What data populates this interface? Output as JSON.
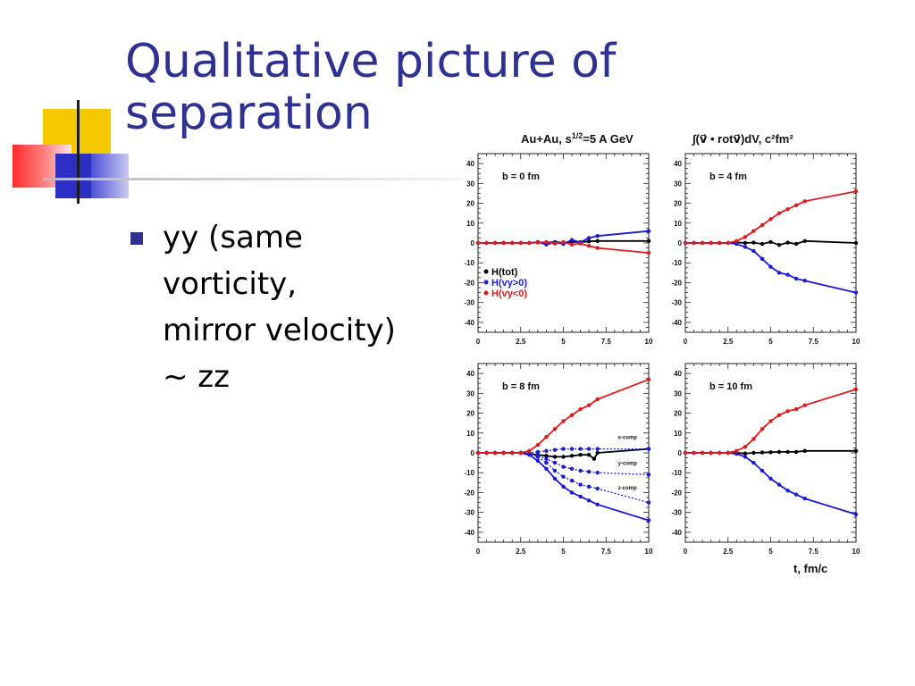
{
  "slide": {
    "title": "Qualitative picture of separation",
    "bullets": [
      "yy (same\nvorticity,\nmirror velocity)\n~ zz"
    ]
  },
  "chart_data": {
    "type": "line",
    "header_left_prefix": "Au+Au, s",
    "header_left_sup": "1/2",
    "header_left_suffix": "=5 A GeV",
    "header_right": "∫(v⃗ • rotv⃗)dV, c²fm²",
    "xlabel": "t, fm/c",
    "xlim": [
      0,
      10
    ],
    "ylim": [
      -45,
      45
    ],
    "x_ticks": [
      "0",
      "2.5",
      "5",
      "7.5",
      "10"
    ],
    "y_ticks": [
      40,
      30,
      20,
      10,
      0,
      -10,
      -20,
      -30,
      -40
    ],
    "colors": {
      "tot": "#000000",
      "pos": "#1a1ad6",
      "neg": "#e01a1a"
    },
    "legend": [
      {
        "key": "tot",
        "label": "H(tot)"
      },
      {
        "key": "pos",
        "label": "H(vy>0)"
      },
      {
        "key": "neg",
        "label": "H(vy<0)"
      }
    ],
    "panels": [
      {
        "label": "b = 0 fm",
        "series": [
          {
            "key": "tot",
            "style": "solid",
            "x": [
              0,
              0.5,
              1,
              1.5,
              2,
              2.5,
              3,
              3.5,
              4,
              4.5,
              5,
              5.5,
              6,
              6.5,
              7,
              10
            ],
            "y": [
              0,
              0,
              0,
              0,
              0,
              0,
              0,
              0.4,
              0.2,
              0.5,
              0.2,
              0.6,
              0.4,
              0.8,
              1,
              1
            ]
          },
          {
            "key": "pos",
            "style": "solid",
            "x": [
              0,
              0.5,
              1,
              1.5,
              2,
              2.5,
              3,
              3.5,
              4,
              4.5,
              5,
              5.5,
              6,
              6.5,
              7,
              10
            ],
            "y": [
              0,
              0,
              0,
              0,
              0,
              0,
              0,
              0.5,
              -0.8,
              0.3,
              -0.5,
              1.5,
              0.3,
              2.5,
              3.5,
              6
            ]
          },
          {
            "key": "neg",
            "style": "solid",
            "x": [
              0,
              0.5,
              1,
              1.5,
              2,
              2.5,
              3,
              3.5,
              4,
              4.5,
              5,
              5.5,
              6,
              6.5,
              7,
              10
            ],
            "y": [
              0,
              0,
              0,
              0,
              0,
              0,
              0,
              0.2,
              0.5,
              -0.3,
              0.5,
              -0.8,
              -0.3,
              -1.5,
              -2.5,
              -5
            ]
          }
        ]
      },
      {
        "label": "b = 4 fm",
        "series": [
          {
            "key": "tot",
            "style": "solid",
            "x": [
              0,
              0.5,
              1,
              1.5,
              2,
              2.5,
              3,
              3.5,
              4,
              4.5,
              5,
              5.5,
              6,
              6.5,
              7,
              10
            ],
            "y": [
              0,
              0,
              0,
              0,
              0,
              0,
              0.3,
              0,
              0.2,
              -0.5,
              0.5,
              -1,
              0.2,
              -0.5,
              1,
              0
            ]
          },
          {
            "key": "pos",
            "style": "solid",
            "x": [
              0,
              0.5,
              1,
              1.5,
              2,
              2.5,
              3,
              3.5,
              4,
              4.5,
              5,
              5.5,
              6,
              6.5,
              7,
              10
            ],
            "y": [
              0,
              0,
              0,
              0,
              0,
              0,
              -0.5,
              -2,
              -4,
              -8,
              -12,
              -15,
              -16,
              -18,
              -19,
              -25
            ]
          },
          {
            "key": "neg",
            "style": "solid",
            "x": [
              0,
              0.5,
              1,
              1.5,
              2,
              2.5,
              3,
              3.5,
              4,
              4.5,
              5,
              5.5,
              6,
              6.5,
              7,
              10
            ],
            "y": [
              0,
              0,
              0,
              0,
              0,
              0,
              1,
              3,
              6,
              9,
              12,
              15,
              17,
              19,
              21,
              26
            ]
          }
        ]
      },
      {
        "label": "b = 8 fm",
        "annotations": [
          {
            "text": "x-comp",
            "x": 8.2,
            "y": 7
          },
          {
            "text": "y-comp",
            "x": 8.2,
            "y": -6
          },
          {
            "text": "z-comp",
            "x": 8.2,
            "y": -18.5
          }
        ],
        "series": [
          {
            "key": "tot",
            "style": "solid",
            "x": [
              0,
              0.5,
              1,
              1.5,
              2,
              2.5,
              3,
              3.5,
              4,
              4.5,
              5,
              5.5,
              6,
              6.5,
              6.8,
              7,
              10
            ],
            "y": [
              0,
              0,
              0,
              0,
              0,
              0,
              -0.5,
              -1,
              -1.5,
              -2,
              -2,
              -1.5,
              -1,
              -1,
              -3,
              0,
              2
            ]
          },
          {
            "key": "pos",
            "style": "solid",
            "x": [
              0,
              0.5,
              1,
              1.5,
              2,
              2.5,
              3,
              3.5,
              4,
              4.5,
              5,
              5.5,
              6,
              6.5,
              7,
              10
            ],
            "y": [
              0,
              0,
              0,
              0,
              0,
              0,
              -1,
              -4,
              -8,
              -13,
              -17,
              -20,
              -22,
              -24,
              -26,
              -34
            ]
          },
          {
            "key": "pos",
            "style": "dotted",
            "x": [
              0,
              0.5,
              1,
              1.5,
              2,
              2.5,
              3,
              3.5,
              4,
              4.5,
              5,
              5.5,
              6,
              6.5,
              7,
              10
            ],
            "y": [
              0,
              0,
              0,
              0,
              0,
              0,
              -0.5,
              -2,
              -5,
              -9,
              -12,
              -14,
              -16,
              -17,
              -18,
              -25
            ]
          },
          {
            "key": "pos",
            "style": "dotted",
            "x": [
              0,
              0.5,
              1,
              1.5,
              2,
              2.5,
              3,
              3.5,
              4,
              4.5,
              5,
              5.5,
              6,
              6.5,
              7,
              10
            ],
            "y": [
              0,
              0,
              0,
              0,
              0,
              0,
              -0.5,
              -1.5,
              -3,
              -5,
              -7,
              -8,
              -9,
              -9.5,
              -10,
              -11
            ]
          },
          {
            "key": "pos",
            "style": "dotted",
            "x": [
              0,
              0.5,
              1,
              1.5,
              2,
              2.5,
              3,
              3.5,
              4,
              4.5,
              5,
              5.5,
              6,
              6.5,
              7,
              10
            ],
            "y": [
              0,
              0,
              0,
              0,
              0,
              0,
              0,
              0.5,
              1,
              1.5,
              2,
              2,
              2,
              2,
              2,
              2
            ]
          },
          {
            "key": "neg",
            "style": "solid",
            "x": [
              0,
              0.5,
              1,
              1.5,
              2,
              2.5,
              3,
              3.5,
              4,
              4.5,
              5,
              5.5,
              6,
              6.5,
              7,
              10
            ],
            "y": [
              0,
              0,
              0,
              0,
              0,
              0,
              1,
              4,
              8,
              12,
              16,
              19,
              22,
              24,
              27,
              37
            ]
          }
        ]
      },
      {
        "label": "b = 10 fm",
        "series": [
          {
            "key": "tot",
            "style": "solid",
            "x": [
              0,
              0.5,
              1,
              1.5,
              2,
              2.5,
              3,
              3.5,
              4,
              4.5,
              5,
              5.5,
              6,
              6.5,
              7,
              10
            ],
            "y": [
              0,
              0,
              0,
              0,
              0,
              0,
              0,
              -0.3,
              0,
              0.2,
              0.3,
              0.5,
              0.5,
              0.5,
              1,
              1
            ]
          },
          {
            "key": "pos",
            "style": "solid",
            "x": [
              0,
              0.5,
              1,
              1.5,
              2,
              2.5,
              3,
              3.5,
              4,
              4.5,
              5,
              5.5,
              6,
              6.5,
              7,
              10
            ],
            "y": [
              0,
              0,
              0,
              0,
              0,
              0,
              -0.5,
              -2,
              -5,
              -9,
              -13,
              -16,
              -19,
              -21,
              -23,
              -31
            ]
          },
          {
            "key": "neg",
            "style": "solid",
            "x": [
              0,
              0.5,
              1,
              1.5,
              2,
              2.5,
              3,
              3.5,
              4,
              4.5,
              5,
              5.5,
              6,
              6.5,
              7,
              10
            ],
            "y": [
              0,
              0,
              0,
              0,
              0,
              0,
              1,
              3,
              7,
              12,
              16,
              19,
              21,
              22,
              24,
              32
            ]
          }
        ]
      }
    ]
  }
}
